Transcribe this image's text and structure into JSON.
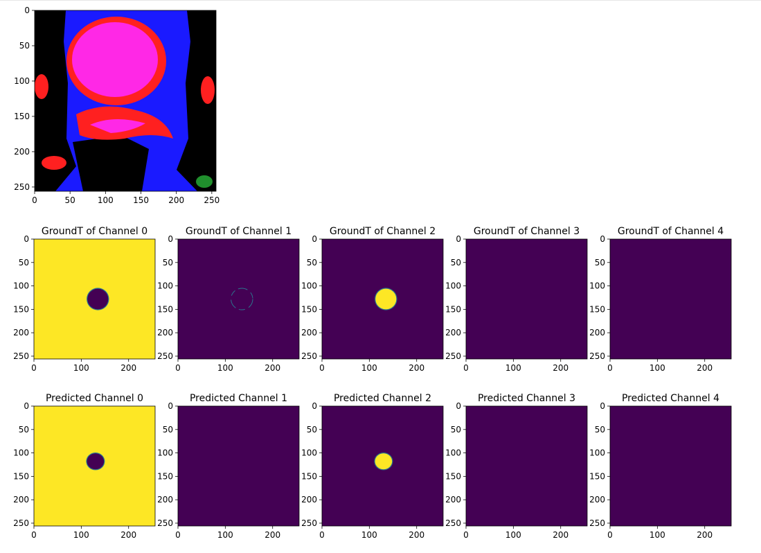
{
  "chart_data": [
    {
      "type": "image",
      "title": "",
      "xticks": [
        0,
        50,
        100,
        150,
        200,
        250
      ],
      "yticks": [
        0,
        50,
        100,
        150,
        200,
        250
      ],
      "xlim": [
        0,
        256
      ],
      "ylim": [
        256,
        0
      ]
    },
    {
      "type": "heatmap",
      "title": "GroundT of Channel 0",
      "xticks": [
        0,
        100,
        200
      ],
      "yticks": [
        0,
        50,
        100,
        150,
        200,
        250
      ],
      "xlim": [
        0,
        256
      ],
      "ylim": [
        256,
        0
      ],
      "background": "high",
      "blob": {
        "present": true,
        "center": [
          135,
          128
        ],
        "value": "low"
      }
    },
    {
      "type": "heatmap",
      "title": "GroundT of Channel 1",
      "xticks": [
        0,
        100,
        200
      ],
      "yticks": [
        0,
        50,
        100,
        150,
        200,
        250
      ],
      "xlim": [
        0,
        256
      ],
      "ylim": [
        256,
        0
      ],
      "background": "low",
      "ring": {
        "present": true,
        "center": [
          135,
          128
        ],
        "value": "mid"
      }
    },
    {
      "type": "heatmap",
      "title": "GroundT of Channel 2",
      "xticks": [
        0,
        100,
        200
      ],
      "yticks": [
        0,
        50,
        100,
        150,
        200,
        250
      ],
      "xlim": [
        0,
        256
      ],
      "ylim": [
        256,
        0
      ],
      "background": "low",
      "blob": {
        "present": true,
        "center": [
          135,
          128
        ],
        "value": "high"
      }
    },
    {
      "type": "heatmap",
      "title": "GroundT of Channel 3",
      "xticks": [
        0,
        100,
        200
      ],
      "yticks": [
        0,
        50,
        100,
        150,
        200,
        250
      ],
      "xlim": [
        0,
        256
      ],
      "ylim": [
        256,
        0
      ],
      "background": "low"
    },
    {
      "type": "heatmap",
      "title": "GroundT of Channel 4",
      "xticks": [
        0,
        100,
        200
      ],
      "yticks": [
        0,
        50,
        100,
        150,
        200,
        250
      ],
      "xlim": [
        0,
        256
      ],
      "ylim": [
        256,
        0
      ],
      "background": "low"
    },
    {
      "type": "heatmap",
      "title": "Predicted Channel 0",
      "xticks": [
        0,
        100,
        200
      ],
      "yticks": [
        0,
        50,
        100,
        150,
        200,
        250
      ],
      "xlim": [
        0,
        256
      ],
      "ylim": [
        256,
        0
      ],
      "background": "high",
      "blob": {
        "present": true,
        "center": [
          130,
          118
        ],
        "value": "low"
      }
    },
    {
      "type": "heatmap",
      "title": "Predicted Channel 1",
      "xticks": [
        0,
        100,
        200
      ],
      "yticks": [
        0,
        50,
        100,
        150,
        200,
        250
      ],
      "xlim": [
        0,
        256
      ],
      "ylim": [
        256,
        0
      ],
      "background": "low"
    },
    {
      "type": "heatmap",
      "title": "Predicted Channel 2",
      "xticks": [
        0,
        100,
        200
      ],
      "yticks": [
        0,
        50,
        100,
        150,
        200,
        250
      ],
      "xlim": [
        0,
        256
      ],
      "ylim": [
        256,
        0
      ],
      "background": "low",
      "blob": {
        "present": true,
        "center": [
          130,
          118
        ],
        "value": "high"
      }
    },
    {
      "type": "heatmap",
      "title": "Predicted Channel 3",
      "xticks": [
        0,
        100,
        200
      ],
      "yticks": [
        0,
        50,
        100,
        150,
        200,
        250
      ],
      "xlim": [
        0,
        256
      ],
      "ylim": [
        256,
        0
      ],
      "background": "low"
    },
    {
      "type": "heatmap",
      "title": "Predicted Channel 4",
      "xticks": [
        0,
        100,
        200
      ],
      "yticks": [
        0,
        50,
        100,
        150,
        200,
        250
      ],
      "xlim": [
        0,
        256
      ],
      "ylim": [
        256,
        0
      ],
      "background": "low"
    }
  ],
  "colors": {
    "low": "#440154",
    "mid": "#2a788e",
    "high": "#fde725",
    "scan_blue": "#1a1aff",
    "scan_red": "#ff2020",
    "scan_magenta": "#ff28e6",
    "scan_black": "#000000"
  }
}
